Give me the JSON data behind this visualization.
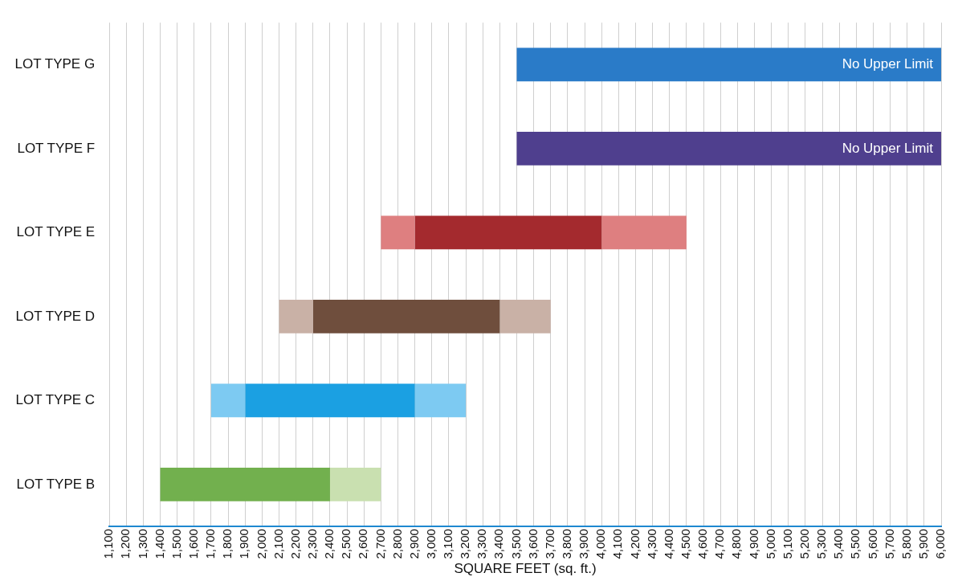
{
  "chart_data": {
    "type": "bar",
    "orientation": "horizontal",
    "xlabel": "SQUARE FEET (sq. ft.)",
    "categories": [
      "LOT TYPE G",
      "LOT TYPE F",
      "LOT TYPE E",
      "LOT TYPE D",
      "LOT TYPE C",
      "LOT TYPE B"
    ],
    "series": [
      {
        "colors": [
          "#2a7bc8",
          "#4f3f8e",
          "#de7f80",
          "#c9b1a6",
          "#7dcaf2",
          "#c9e0b0"
        ],
        "base": [
          null,
          null,
          2700,
          2100,
          1700,
          null
        ],
        "values": [
          null,
          null,
          200,
          200,
          200,
          null
        ]
      },
      {
        "colors": [
          "#2a7bc8",
          "#4f3f8e",
          "#a42a2e",
          "#6f4e3d",
          "#1ba0e2",
          "#72b04e"
        ],
        "base": [
          3500,
          3500,
          2900,
          2300,
          1900,
          1400
        ],
        "values": [
          2500,
          2500,
          1100,
          1100,
          1000,
          1000
        ]
      },
      {
        "colors": [
          "#2a7bc8",
          "#4f3f8e",
          "#de7f80",
          "#c9b1a6",
          "#7dcaf2",
          "#c9e0b0"
        ],
        "base": [
          null,
          null,
          4000,
          3400,
          2900,
          2400
        ],
        "values": [
          null,
          null,
          500,
          300,
          300,
          300
        ]
      }
    ],
    "xlim": [
      1100,
      6000
    ],
    "xticks": [
      {
        "value": 1100,
        "label": "1,100"
      },
      {
        "value": 1200,
        "label": "1,200"
      },
      {
        "value": 1300,
        "label": "1,300"
      },
      {
        "value": 1400,
        "label": "1,400"
      },
      {
        "value": 1500,
        "label": "1,500"
      },
      {
        "value": 1600,
        "label": "1,600"
      },
      {
        "value": 1700,
        "label": "1,700"
      },
      {
        "value": 1800,
        "label": "1,800"
      },
      {
        "value": 1900,
        "label": "1,900"
      },
      {
        "value": 2000,
        "label": "2,000"
      },
      {
        "value": 2100,
        "label": "2,100"
      },
      {
        "value": 2200,
        "label": "2,200"
      },
      {
        "value": 2300,
        "label": "2,300"
      },
      {
        "value": 2400,
        "label": "2,400"
      },
      {
        "value": 2500,
        "label": "2,500"
      },
      {
        "value": 2600,
        "label": "2,600"
      },
      {
        "value": 2700,
        "label": "2,700"
      },
      {
        "value": 2800,
        "label": "2,800"
      },
      {
        "value": 2900,
        "label": "2,900"
      },
      {
        "value": 3000,
        "label": "3,000"
      },
      {
        "value": 3100,
        "label": "3,100"
      },
      {
        "value": 3200,
        "label": "3,200"
      },
      {
        "value": 3300,
        "label": "3,300"
      },
      {
        "value": 3400,
        "label": "3,400"
      },
      {
        "value": 3500,
        "label": "3,500"
      },
      {
        "value": 3600,
        "label": "3,600"
      },
      {
        "value": 3700,
        "label": "3,700"
      },
      {
        "value": 3800,
        "label": "3,800"
      },
      {
        "value": 3900,
        "label": "3,900"
      },
      {
        "value": 4000,
        "label": "4,000"
      },
      {
        "value": 4100,
        "label": "4,100"
      },
      {
        "value": 4200,
        "label": "4,200"
      },
      {
        "value": 4300,
        "label": "4,300"
      },
      {
        "value": 4400,
        "label": "4,400"
      },
      {
        "value": 4500,
        "label": "4,500"
      },
      {
        "value": 4600,
        "label": "4,600"
      },
      {
        "value": 4700,
        "label": "4,700"
      },
      {
        "value": 4800,
        "label": "4,800"
      },
      {
        "value": 4900,
        "label": "4,900"
      },
      {
        "value": 5000,
        "label": "5,000"
      },
      {
        "value": 5100,
        "label": "5,100"
      },
      {
        "value": 5200,
        "label": "5,200"
      },
      {
        "value": 5300,
        "label": "5,300"
      },
      {
        "value": 5400,
        "label": "5,400"
      },
      {
        "value": 5500,
        "label": "5,500"
      },
      {
        "value": 5600,
        "label": "5,600"
      },
      {
        "value": 5700,
        "label": "5,700"
      },
      {
        "value": 5800,
        "label": "5,800"
      },
      {
        "value": 5900,
        "label": "5,900"
      },
      {
        "value": 6000,
        "label": "6,000"
      }
    ],
    "grid": "x",
    "annotations": [
      {
        "text": "No Upper Limit",
        "x": 6000,
        "y": "LOT TYPE G"
      },
      {
        "text": "No Upper Limit",
        "x": 6000,
        "y": "LOT TYPE F"
      }
    ]
  }
}
